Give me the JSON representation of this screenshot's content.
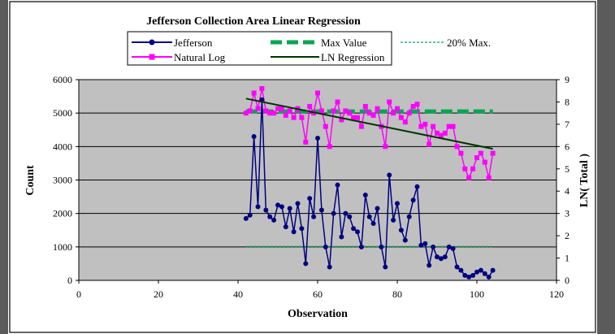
{
  "chart_data": {
    "type": "line",
    "title": "Jefferson Collection Area Linear Regression",
    "xlabel": "Observation",
    "ylabel": "Count",
    "y2label": "LN( Total )",
    "xlim": [
      0,
      120
    ],
    "ylim": [
      0,
      6000
    ],
    "y2lim": [
      0,
      9
    ],
    "x_ticks": [
      0,
      20,
      40,
      60,
      80,
      100,
      120
    ],
    "y_ticks": [
      0,
      1000,
      2000,
      3000,
      4000,
      5000,
      6000
    ],
    "y2_ticks": [
      0,
      1,
      2,
      3,
      4,
      5,
      6,
      7,
      8,
      9
    ],
    "plot_background": "#c0c0c0",
    "grid": true,
    "legend_position": "top",
    "series": [
      {
        "name": "Jefferson",
        "axis": "left",
        "color": "#000080",
        "x": [
          42,
          43,
          44,
          45,
          46,
          47,
          48,
          49,
          50,
          51,
          52,
          53,
          54,
          55,
          56,
          57,
          58,
          59,
          60,
          61,
          62,
          63,
          64,
          65,
          66,
          67,
          68,
          69,
          70,
          71,
          72,
          73,
          74,
          75,
          76,
          77,
          78,
          79,
          80,
          81,
          82,
          83,
          84,
          85,
          86,
          87,
          88,
          89,
          90,
          91,
          92,
          93,
          94,
          95,
          96,
          97,
          98,
          99,
          100,
          101,
          102,
          103,
          104
        ],
        "values": [
          1850,
          1950,
          4300,
          2200,
          5400,
          2100,
          1900,
          1800,
          2250,
          2200,
          1600,
          2150,
          1450,
          2300,
          1550,
          500,
          2450,
          1900,
          4250,
          2100,
          1000,
          400,
          2000,
          2850,
          1300,
          2000,
          1900,
          1550,
          1450,
          1000,
          2550,
          1900,
          1700,
          2150,
          1000,
          400,
          3150,
          1800,
          2300,
          1500,
          1200,
          1900,
          2400,
          2800,
          1050,
          1100,
          450,
          1000,
          700,
          650,
          700,
          1000,
          950,
          400,
          300,
          150,
          100,
          150,
          250,
          300,
          200,
          100,
          300
        ]
      },
      {
        "name": "Natural Log",
        "axis": "right",
        "color": "#ff00ff",
        "x": [
          42,
          43,
          44,
          45,
          46,
          47,
          48,
          49,
          50,
          51,
          52,
          53,
          54,
          55,
          56,
          57,
          58,
          59,
          60,
          61,
          62,
          63,
          64,
          65,
          66,
          67,
          68,
          69,
          70,
          71,
          72,
          73,
          74,
          75,
          76,
          77,
          78,
          79,
          80,
          81,
          82,
          83,
          84,
          85,
          86,
          87,
          88,
          89,
          90,
          91,
          92,
          93,
          94,
          95,
          96,
          97,
          98,
          99,
          100,
          101,
          102,
          103,
          104
        ],
        "values": [
          7.5,
          7.6,
          8.4,
          7.7,
          8.6,
          7.6,
          7.5,
          7.5,
          7.7,
          7.7,
          7.4,
          7.6,
          7.3,
          7.7,
          7.3,
          6.2,
          7.8,
          7.5,
          8.4,
          7.6,
          6.9,
          6.0,
          7.6,
          8.0,
          7.2,
          7.6,
          7.5,
          7.3,
          7.3,
          6.9,
          7.8,
          7.5,
          7.4,
          7.7,
          6.9,
          6.0,
          8.0,
          7.5,
          7.7,
          7.3,
          7.1,
          7.5,
          7.8,
          7.9,
          6.9,
          7.0,
          6.1,
          6.9,
          6.6,
          6.5,
          6.6,
          6.9,
          6.9,
          6.0,
          5.7,
          5.0,
          4.6,
          5.0,
          5.5,
          5.7,
          5.3,
          4.6,
          5.7
        ]
      },
      {
        "name": "Max Value",
        "axis": "left",
        "color": "#00a651",
        "style": "dashed-thick",
        "x": [
          42,
          104
        ],
        "values": [
          5050,
          5050
        ]
      },
      {
        "name": "20% Max.",
        "axis": "left",
        "color": "#00a651",
        "style": "dashed-thin",
        "x": [
          42,
          104
        ],
        "values": [
          1010,
          1010
        ]
      },
      {
        "name": "LN Regression",
        "axis": "right",
        "color": "#003300",
        "style": "solid",
        "x": [
          42,
          104
        ],
        "values": [
          8.15,
          5.9
        ]
      }
    ]
  }
}
